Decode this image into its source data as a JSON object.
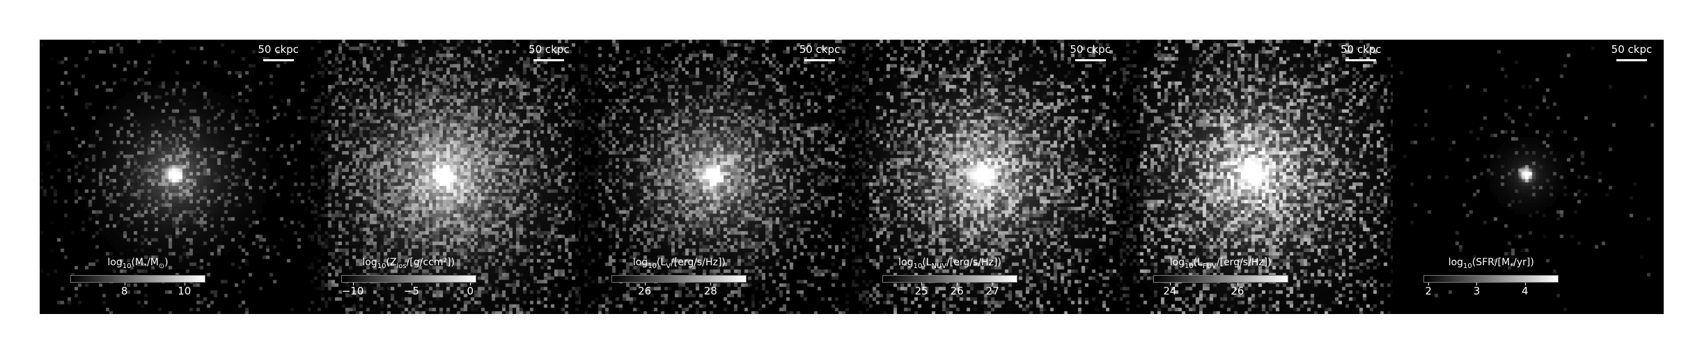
{
  "figure": {
    "panels": [
      {
        "id": "stellar-mass",
        "scalebar": "50 ckpc",
        "colorbar": {
          "pre": "log",
          "pre_sub": "10",
          "mid": "(M",
          "mid_sub": "*",
          "post": "/M",
          "post_sub": "⊙",
          "tail": ")",
          "ticks": [
            {
              "label": "8",
              "value": 8
            },
            {
              "label": "10",
              "value": 10
            }
          ],
          "range": [
            6.2,
            10.7
          ]
        }
      },
      {
        "id": "metallicity",
        "scalebar": "50 ckpc",
        "colorbar": {
          "pre": "log",
          "pre_sub": "10",
          "mid": "(Z",
          "mid_sub": "los",
          "post": "/[g/ccm²]",
          "post_sub": "",
          "tail": ")",
          "ticks": [
            {
              "label": "−10",
              "value": -10
            },
            {
              "label": "−5",
              "value": -5
            },
            {
              "label": "0",
              "value": 0
            }
          ],
          "range": [
            -11,
            0.5
          ]
        }
      },
      {
        "id": "v-band-luminosity",
        "scalebar": "50 ckpc",
        "colorbar": {
          "pre": "log",
          "pre_sub": "10",
          "mid": "(L",
          "mid_sub": "V",
          "post": "/[erg/s/Hz]",
          "post_sub": "",
          "tail": ")",
          "ticks": [
            {
              "label": "26",
              "value": 26
            },
            {
              "label": "28",
              "value": 28
            }
          ],
          "range": [
            25.0,
            29.1
          ]
        }
      },
      {
        "id": "nuv-luminosity",
        "scalebar": "50 ckpc",
        "colorbar": {
          "pre": "log",
          "pre_sub": "10",
          "mid": "(L",
          "mid_sub": "NUV",
          "post": "/[erg/s/Hz]",
          "post_sub": "",
          "tail": ")",
          "ticks": [
            {
              "label": "25",
              "value": 25
            },
            {
              "label": "26",
              "value": 26
            },
            {
              "label": "27",
              "value": 27
            }
          ],
          "range": [
            23.9,
            27.7
          ]
        }
      },
      {
        "id": "fuv-luminosity",
        "scalebar": "50 ckpc",
        "colorbar": {
          "pre": "log",
          "pre_sub": "10",
          "mid": "(L",
          "mid_sub": "FUV",
          "post": "/[erg/s/Hz]",
          "post_sub": "",
          "tail": ")",
          "ticks": [
            {
              "label": "24",
              "value": 24
            },
            {
              "label": "26",
              "value": 26
            }
          ],
          "range": [
            23.5,
            27.5
          ]
        }
      },
      {
        "id": "star-formation-rate",
        "scalebar": "50 ckpc",
        "colorbar": {
          "pre": "log",
          "pre_sub": "10",
          "mid": "(SFR/[M",
          "mid_sub": "*",
          "post": "/yr]",
          "post_sub": "",
          "tail": ")",
          "ticks": [
            {
              "label": "2",
              "value": 2
            },
            {
              "label": "3",
              "value": 3
            },
            {
              "label": "4",
              "value": 4
            }
          ],
          "range": [
            1.9,
            4.7
          ]
        }
      }
    ]
  }
}
